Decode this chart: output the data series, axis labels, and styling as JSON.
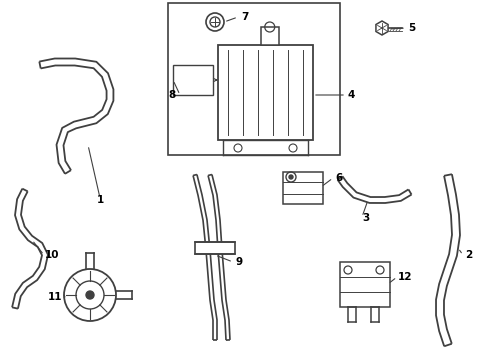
{
  "bg_color": "#ffffff",
  "line_color": "#404040",
  "label_color": "#000000",
  "fig_width": 4.9,
  "fig_height": 3.6,
  "dpi": 100
}
